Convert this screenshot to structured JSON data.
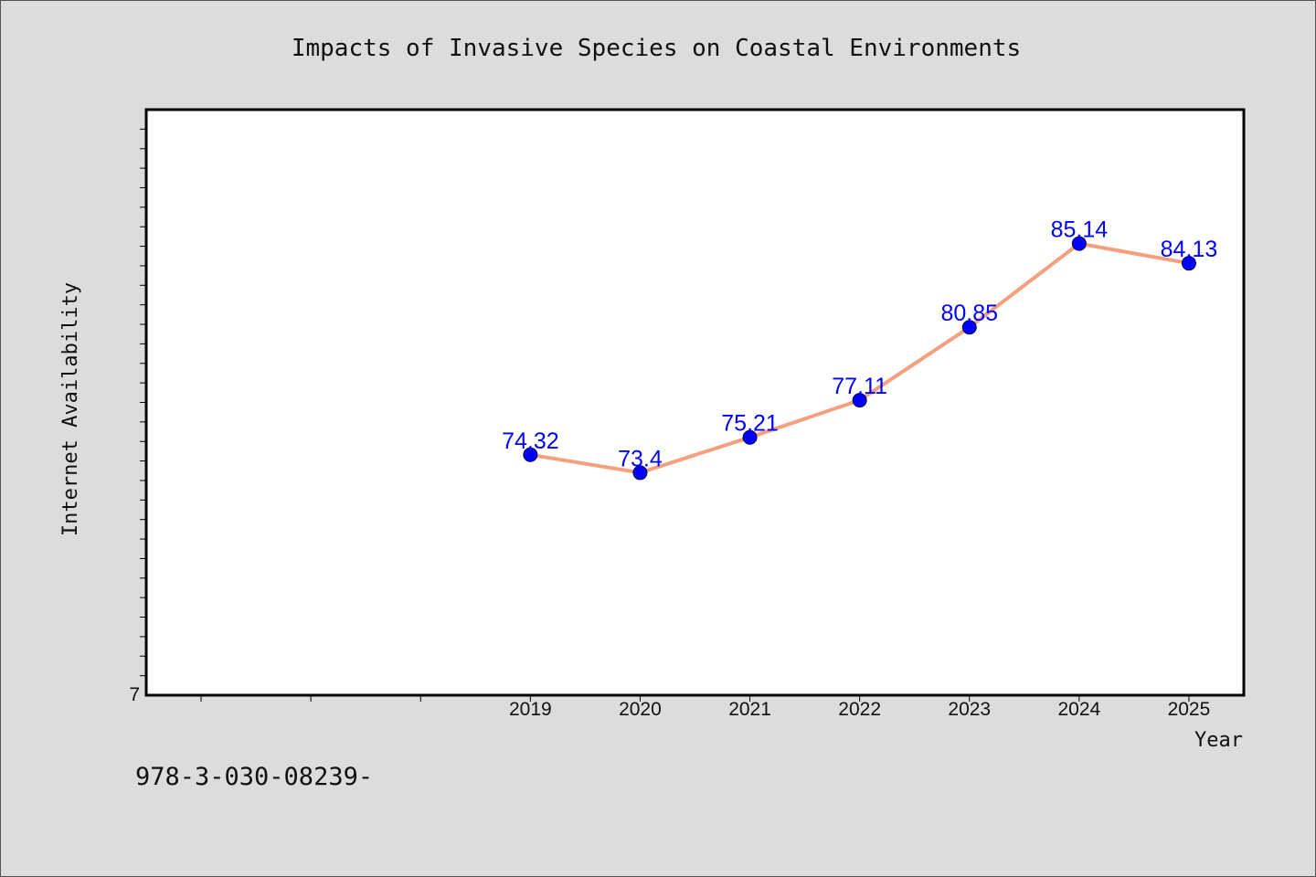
{
  "footer_text": "978-3-030-08239-",
  "chart_data": {
    "type": "line",
    "title": "Impacts of Invasive Species on Coastal Environments",
    "xlabel": "Year",
    "ylabel": "Internet Availability",
    "y_tick_labels": [
      "7"
    ],
    "ylim": [
      62,
      92
    ],
    "xlim": [
      2015.5,
      2025.5
    ],
    "x": [
      2019,
      2020,
      2021,
      2022,
      2023,
      2024,
      2025
    ],
    "x_tick_labels": [
      "2019",
      "2020",
      "2021",
      "2022",
      "2023",
      "2024",
      "2025"
    ],
    "series": [
      {
        "values": [
          74.32,
          73.4,
          75.21,
          77.11,
          80.85,
          85.14,
          84.13
        ],
        "data_labels": [
          "74.32",
          "73.4",
          "75.21",
          "77.11",
          "80.85",
          "85.14",
          "84.13"
        ],
        "line_color": "#f4a07e",
        "marker_color": "#0000ff"
      }
    ],
    "grid": false,
    "legend": "none"
  }
}
